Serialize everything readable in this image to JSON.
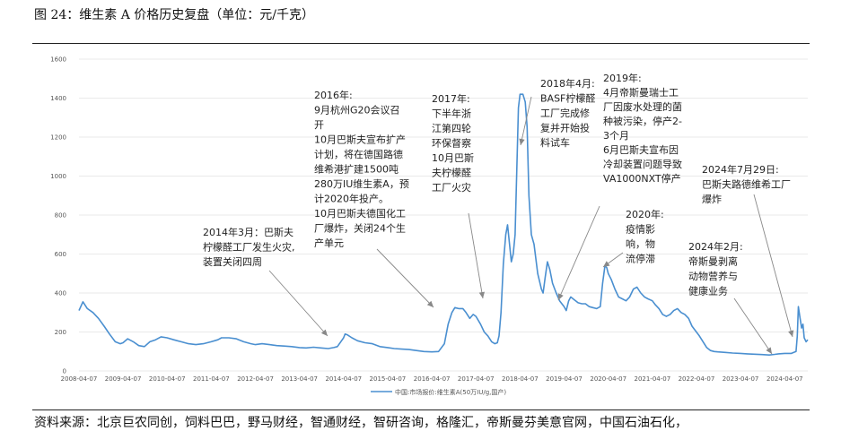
{
  "figure": {
    "title": "图 24：维生素 A 价格历史复盘（单位：元/千克）",
    "source": "资料来源：北京巨农同创，饲料巴巴，野马财经，智通财经，智研咨询，格隆汇，帝斯曼芬美意官网，中国石油石化，"
  },
  "colors": {
    "line": "#4a8fd0",
    "arrow": "#888888",
    "text": "#222222"
  },
  "chart_data": {
    "type": "line",
    "title": "",
    "xlabel": "",
    "ylabel": "",
    "ylim": [
      0,
      1600
    ],
    "yticks": [
      0,
      200,
      400,
      600,
      800,
      1000,
      1200,
      1400,
      1600
    ],
    "xlim": [
      "2008-04-07",
      "2024-10-15"
    ],
    "xticks": [
      "2008-04-07",
      "2009-04-07",
      "2010-04-07",
      "2011-04-07",
      "2012-04-07",
      "2013-04-07",
      "2014-04-07",
      "2015-04-07",
      "2016-04-07",
      "2017-04-07",
      "2018-04-07",
      "2019-04-07",
      "2020-04-07",
      "2021-04-07",
      "2022-04-07",
      "2023-04-07",
      "2024-04-07"
    ],
    "grid": "horizontal",
    "legend": "bottom-center",
    "series": [
      {
        "name": "中国:市场报价:维生素A(50万IU/g,国产)",
        "points": [
          [
            "2008-04-07",
            310
          ],
          [
            "2008-05-10",
            355
          ],
          [
            "2008-06-15",
            320
          ],
          [
            "2008-08-01",
            300
          ],
          [
            "2008-09-15",
            270
          ],
          [
            "2008-11-01",
            230
          ],
          [
            "2008-12-15",
            190
          ],
          [
            "2009-02-01",
            150
          ],
          [
            "2009-03-15",
            140
          ],
          [
            "2009-04-07",
            145
          ],
          [
            "2009-05-15",
            165
          ],
          [
            "2009-07-01",
            150
          ],
          [
            "2009-08-15",
            130
          ],
          [
            "2009-10-01",
            125
          ],
          [
            "2009-11-15",
            150
          ],
          [
            "2010-01-01",
            160
          ],
          [
            "2010-02-15",
            175
          ],
          [
            "2010-04-07",
            170
          ],
          [
            "2010-06-01",
            160
          ],
          [
            "2010-08-01",
            150
          ],
          [
            "2010-10-01",
            140
          ],
          [
            "2010-12-01",
            135
          ],
          [
            "2011-02-01",
            140
          ],
          [
            "2011-04-07",
            150
          ],
          [
            "2011-06-01",
            160
          ],
          [
            "2011-07-01",
            170
          ],
          [
            "2011-09-01",
            170
          ],
          [
            "2011-11-01",
            165
          ],
          [
            "2012-01-01",
            150
          ],
          [
            "2012-03-01",
            140
          ],
          [
            "2012-04-07",
            135
          ],
          [
            "2012-06-01",
            140
          ],
          [
            "2012-08-01",
            135
          ],
          [
            "2012-10-01",
            130
          ],
          [
            "2012-12-01",
            128
          ],
          [
            "2013-02-01",
            125
          ],
          [
            "2013-04-07",
            120
          ],
          [
            "2013-06-01",
            118
          ],
          [
            "2013-08-01",
            122
          ],
          [
            "2013-10-01",
            118
          ],
          [
            "2013-12-01",
            115
          ],
          [
            "2014-01-15",
            120
          ],
          [
            "2014-02-15",
            125
          ],
          [
            "2014-03-15",
            150
          ],
          [
            "2014-04-07",
            170
          ],
          [
            "2014-04-20",
            190
          ],
          [
            "2014-05-10",
            185
          ],
          [
            "2014-06-15",
            170
          ],
          [
            "2014-08-01",
            155
          ],
          [
            "2014-10-01",
            145
          ],
          [
            "2014-12-01",
            140
          ],
          [
            "2015-02-01",
            125
          ],
          [
            "2015-04-07",
            120
          ],
          [
            "2015-06-01",
            115
          ],
          [
            "2015-08-01",
            112
          ],
          [
            "2015-10-01",
            110
          ],
          [
            "2015-12-01",
            105
          ],
          [
            "2016-02-01",
            100
          ],
          [
            "2016-04-07",
            98
          ],
          [
            "2016-06-01",
            100
          ],
          [
            "2016-07-20",
            140
          ],
          [
            "2016-08-20",
            240
          ],
          [
            "2016-09-20",
            300
          ],
          [
            "2016-10-15",
            325
          ],
          [
            "2016-11-15",
            320
          ],
          [
            "2016-12-20",
            320
          ],
          [
            "2017-01-15",
            300
          ],
          [
            "2017-02-15",
            270
          ],
          [
            "2017-03-15",
            290
          ],
          [
            "2017-04-07",
            280
          ],
          [
            "2017-05-15",
            240
          ],
          [
            "2017-06-15",
            200
          ],
          [
            "2017-07-15",
            180
          ],
          [
            "2017-08-15",
            150
          ],
          [
            "2017-09-10",
            140
          ],
          [
            "2017-10-01",
            145
          ],
          [
            "2017-10-15",
            180
          ],
          [
            "2017-11-01",
            300
          ],
          [
            "2017-11-20",
            550
          ],
          [
            "2017-12-10",
            700
          ],
          [
            "2017-12-25",
            750
          ],
          [
            "2018-01-10",
            650
          ],
          [
            "2018-01-25",
            560
          ],
          [
            "2018-02-10",
            600
          ],
          [
            "2018-02-25",
            700
          ],
          [
            "2018-03-10",
            1000
          ],
          [
            "2018-03-25",
            1350
          ],
          [
            "2018-04-07",
            1420
          ],
          [
            "2018-05-01",
            1420
          ],
          [
            "2018-05-20",
            1380
          ],
          [
            "2018-06-05",
            1250
          ],
          [
            "2018-06-20",
            900
          ],
          [
            "2018-07-10",
            700
          ],
          [
            "2018-08-01",
            650
          ],
          [
            "2018-09-01",
            500
          ],
          [
            "2018-10-01",
            420
          ],
          [
            "2018-10-15",
            400
          ],
          [
            "2018-11-01",
            480
          ],
          [
            "2018-11-20",
            560
          ],
          [
            "2018-12-10",
            520
          ],
          [
            "2019-01-01",
            450
          ],
          [
            "2019-02-01",
            400
          ],
          [
            "2019-03-01",
            360
          ],
          [
            "2019-04-07",
            330
          ],
          [
            "2019-04-25",
            310
          ],
          [
            "2019-05-15",
            360
          ],
          [
            "2019-06-01",
            380
          ],
          [
            "2019-07-01",
            365
          ],
          [
            "2019-08-01",
            350
          ],
          [
            "2019-09-01",
            345
          ],
          [
            "2019-10-01",
            345
          ],
          [
            "2019-11-01",
            330
          ],
          [
            "2019-12-01",
            325
          ],
          [
            "2020-01-01",
            320
          ],
          [
            "2020-02-01",
            330
          ],
          [
            "2020-02-20",
            450
          ],
          [
            "2020-03-10",
            540
          ],
          [
            "2020-03-25",
            530
          ],
          [
            "2020-04-07",
            500
          ],
          [
            "2020-05-01",
            470
          ],
          [
            "2020-06-01",
            420
          ],
          [
            "2020-07-01",
            380
          ],
          [
            "2020-08-01",
            370
          ],
          [
            "2020-09-01",
            360
          ],
          [
            "2020-10-01",
            380
          ],
          [
            "2020-11-01",
            420
          ],
          [
            "2020-12-01",
            430
          ],
          [
            "2021-01-01",
            400
          ],
          [
            "2021-02-01",
            380
          ],
          [
            "2021-03-01",
            370
          ],
          [
            "2021-04-07",
            360
          ],
          [
            "2021-05-01",
            340
          ],
          [
            "2021-06-01",
            320
          ],
          [
            "2021-07-01",
            290
          ],
          [
            "2021-08-01",
            280
          ],
          [
            "2021-09-01",
            290
          ],
          [
            "2021-10-01",
            310
          ],
          [
            "2021-11-01",
            320
          ],
          [
            "2021-12-01",
            300
          ],
          [
            "2022-01-01",
            290
          ],
          [
            "2022-02-01",
            270
          ],
          [
            "2022-03-01",
            230
          ],
          [
            "2022-04-07",
            200
          ],
          [
            "2022-05-01",
            180
          ],
          [
            "2022-06-01",
            150
          ],
          [
            "2022-07-01",
            120
          ],
          [
            "2022-08-01",
            105
          ],
          [
            "2022-09-01",
            100
          ],
          [
            "2022-10-01",
            98
          ],
          [
            "2022-12-01",
            95
          ],
          [
            "2023-02-01",
            92
          ],
          [
            "2023-04-07",
            90
          ],
          [
            "2023-06-01",
            88
          ],
          [
            "2023-08-01",
            86
          ],
          [
            "2023-10-01",
            84
          ],
          [
            "2023-12-01",
            82
          ],
          [
            "2024-01-15",
            85
          ],
          [
            "2024-02-15",
            88
          ],
          [
            "2024-04-07",
            90
          ],
          [
            "2024-06-01",
            90
          ],
          [
            "2024-07-10",
            100
          ],
          [
            "2024-07-20",
            180
          ],
          [
            "2024-07-29",
            330
          ],
          [
            "2024-08-10",
            280
          ],
          [
            "2024-08-25",
            220
          ],
          [
            "2024-09-05",
            240
          ],
          [
            "2024-09-15",
            170
          ],
          [
            "2024-10-01",
            150
          ],
          [
            "2024-10-15",
            160
          ]
        ]
      }
    ],
    "annotations": [
      {
        "lines": [
          "2014年3月：巴斯夫",
          "柠檬醛工厂发生火灾,",
          "装置关闭四周"
        ]
      },
      {
        "lines": [
          "2016年:",
          "9月杭州G20会议召",
          "开",
          "10月巴斯夫宣布扩产",
          "计划，将在德国路德",
          "维希港扩建1500吨",
          "280万IU维生素A，预",
          "计2020年投产。",
          "10月巴斯夫德国化工",
          "厂爆炸，关闭24个生",
          "产单元"
        ]
      },
      {
        "lines": [
          "2017年:",
          "下半年浙",
          "江第四轮",
          "环保督察",
          "10月巴斯",
          "夫柠檬醛",
          "工厂火灾"
        ]
      },
      {
        "lines": [
          "2018年4月:",
          "BASF柠檬醛",
          "工厂完成修",
          "复并开始投",
          "料试车"
        ]
      },
      {
        "lines": [
          "2019年:",
          "4月帝斯曼瑞士工",
          "厂因废水处理的菌",
          "种被污染，停产2-",
          "3个月",
          "6月巴斯夫宣布因",
          "冷却装置问题导致",
          "VA1000NXT停产"
        ]
      },
      {
        "lines": [
          "2020年:",
          "疫情影",
          "响，物",
          "流停滞"
        ]
      },
      {
        "lines": [
          "2024年2月:",
          "帝斯曼剥离",
          "动物营养与",
          "健康业务"
        ]
      },
      {
        "lines": [
          "2024年7月29日:",
          "巴斯夫路德维希工厂",
          "爆炸"
        ]
      }
    ]
  }
}
